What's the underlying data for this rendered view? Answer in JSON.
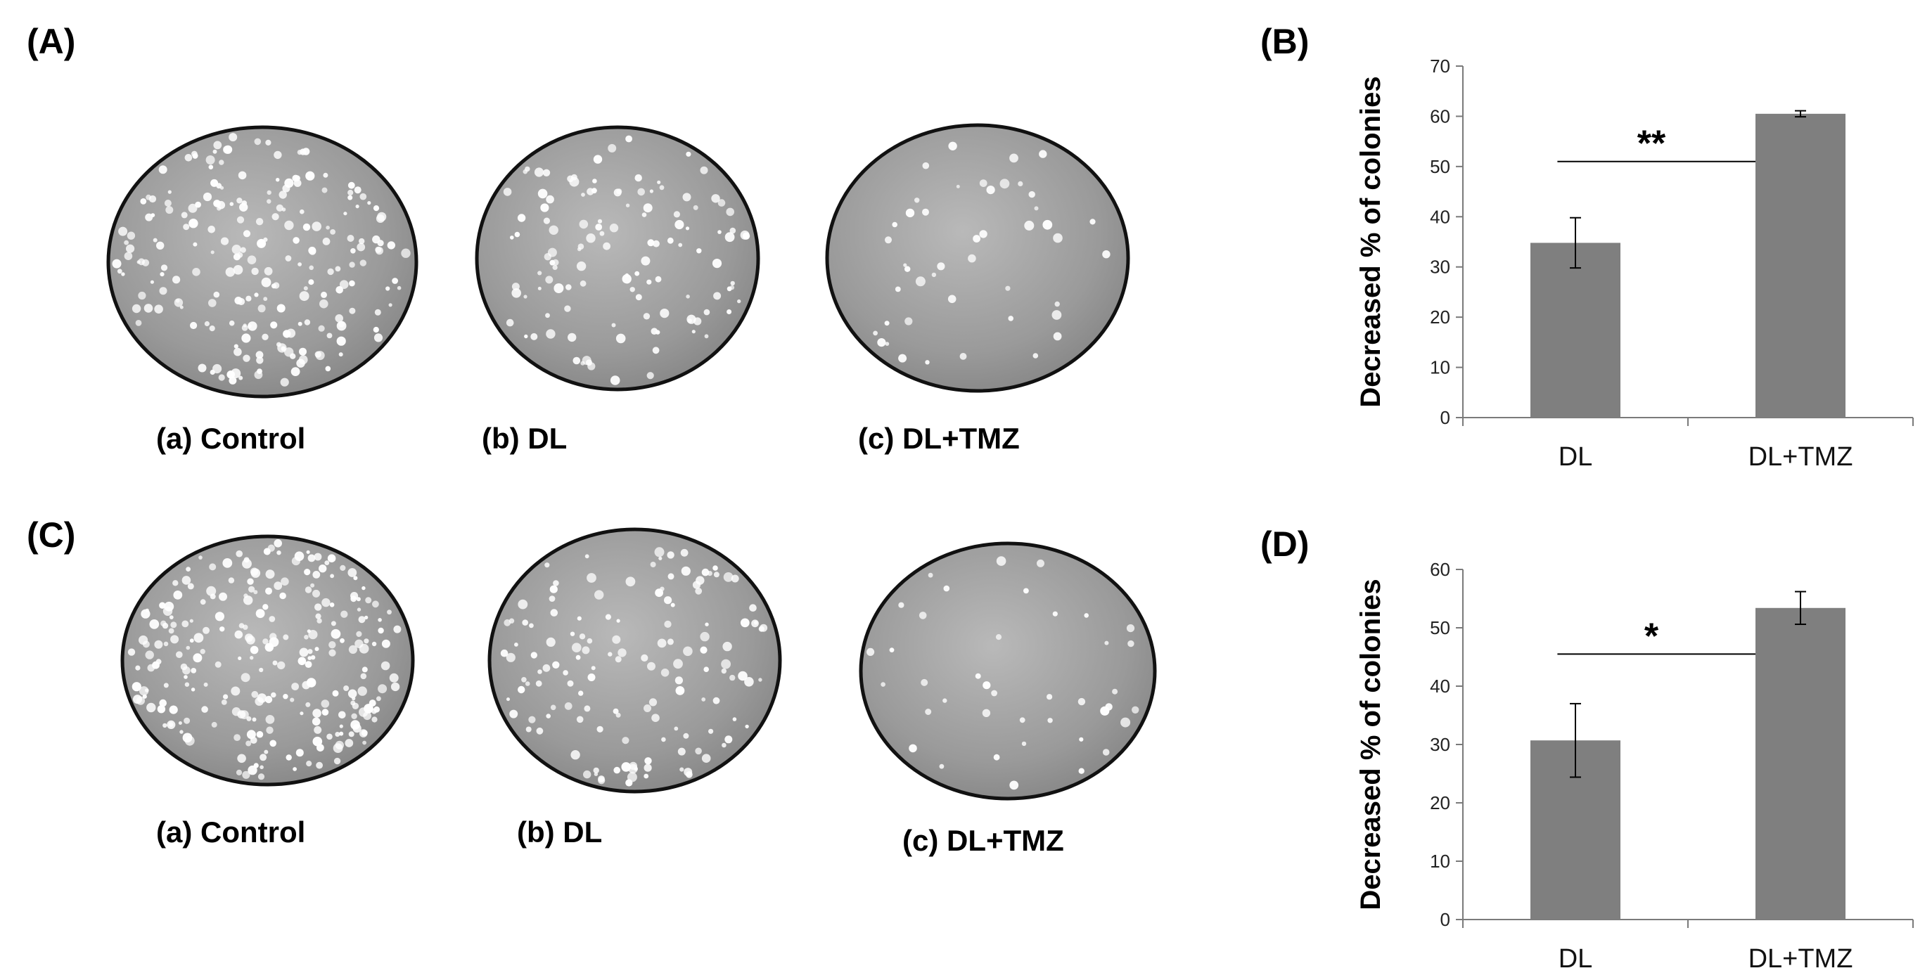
{
  "panels": {
    "A": {
      "label": "(A)",
      "plates": [
        {
          "label": "(a) Control",
          "density": 220
        },
        {
          "label": "(b) DL",
          "density": 120
        },
        {
          "label": "(c) DL+TMZ",
          "density": 45
        }
      ]
    },
    "C": {
      "label": "(C)",
      "plates": [
        {
          "label": "(a) Control",
          "density": 260
        },
        {
          "label": "(b) DL",
          "density": 140
        },
        {
          "label": "(c) DL+TMZ",
          "density": 40
        }
      ]
    }
  },
  "chart_data": [
    {
      "id": "B",
      "panel_label": "(B)",
      "type": "bar",
      "categories": [
        "DL",
        "DL+TMZ"
      ],
      "values": [
        34.8,
        60.5
      ],
      "errors": [
        5.0,
        0.6
      ],
      "ylabel": "Decreased % of colonies",
      "ylim": [
        0,
        70
      ],
      "yticks": [
        0,
        10,
        20,
        30,
        40,
        50,
        60,
        70
      ],
      "significance": {
        "label": "**",
        "level": 51
      },
      "bar_color": "#7f7f7f",
      "grid": false
    },
    {
      "id": "D",
      "panel_label": "(D)",
      "type": "bar",
      "categories": [
        "DL",
        "DL+TMZ"
      ],
      "values": [
        30.7,
        53.4
      ],
      "errors": [
        6.3,
        2.8
      ],
      "ylabel": "Decreased % of colonies",
      "ylim": [
        0,
        60
      ],
      "yticks": [
        0,
        10,
        20,
        30,
        40,
        50,
        60
      ],
      "significance": {
        "label": "*",
        "level": 45.5
      },
      "bar_color": "#7f7f7f",
      "grid": false
    }
  ]
}
